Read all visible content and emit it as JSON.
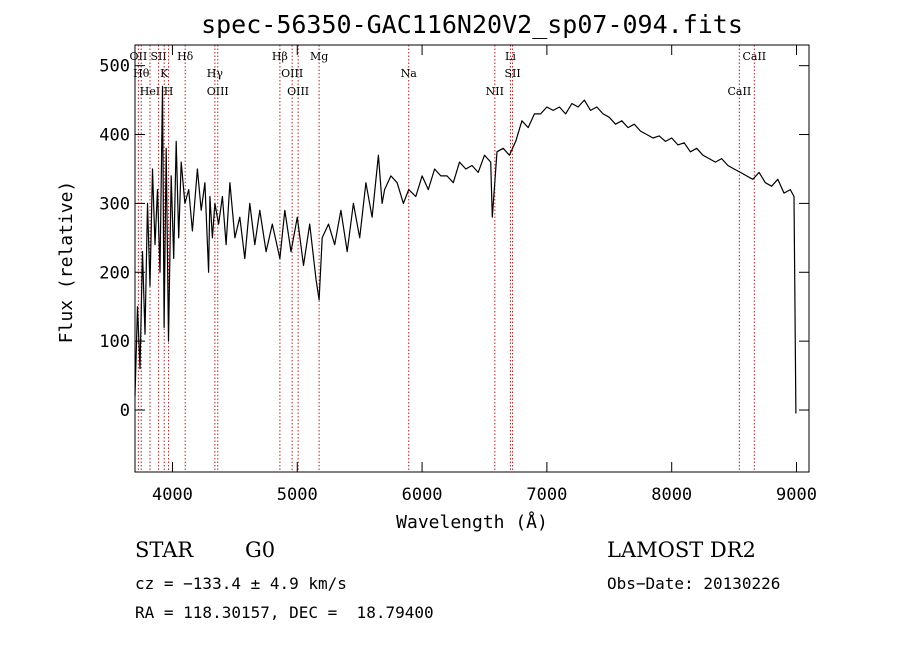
{
  "chart_data": {
    "type": "line",
    "title": "spec-56350-GAC116N20V2_sp07-094.fits",
    "xlabel": "Wavelength (Å)",
    "ylabel": "Flux (relative)",
    "xlim": [
      3700,
      9100
    ],
    "ylim": [
      -90,
      530
    ],
    "xticks": [
      4000,
      5000,
      6000,
      7000,
      8000,
      9000
    ],
    "yticks": [
      0,
      100,
      200,
      300,
      400,
      500
    ],
    "grid": false,
    "line_color": "#000000",
    "marker_color": "#b22222",
    "series": [
      {
        "x": [
          3700,
          3720,
          3740,
          3760,
          3780,
          3800,
          3820,
          3840,
          3860,
          3880,
          3900,
          3920,
          3933,
          3950,
          3968,
          3990,
          4010,
          4030,
          4050,
          4070,
          4100,
          4130,
          4160,
          4200,
          4230,
          4260,
          4290,
          4300,
          4320,
          4340,
          4370,
          4400,
          4430,
          4460,
          4500,
          4540,
          4580,
          4620,
          4660,
          4700,
          4750,
          4800,
          4861,
          4900,
          4950,
          5000,
          5050,
          5100,
          5150,
          5175,
          5200,
          5250,
          5300,
          5350,
          5400,
          5450,
          5500,
          5550,
          5600,
          5650,
          5680,
          5700,
          5750,
          5800,
          5850,
          5893,
          5950,
          6000,
          6050,
          6100,
          6150,
          6200,
          6250,
          6300,
          6350,
          6400,
          6450,
          6500,
          6550,
          6563,
          6600,
          6650,
          6700,
          6750,
          6800,
          6850,
          6900,
          6950,
          7000,
          7050,
          7100,
          7150,
          7200,
          7250,
          7300,
          7350,
          7400,
          7450,
          7500,
          7550,
          7600,
          7650,
          7700,
          7750,
          7800,
          7850,
          7900,
          7950,
          8000,
          8050,
          8100,
          8150,
          8200,
          8250,
          8300,
          8350,
          8400,
          8450,
          8500,
          8550,
          8600,
          8650,
          8700,
          8750,
          8800,
          8850,
          8900,
          8950,
          8980,
          8995
        ],
        "y": [
          20,
          150,
          60,
          230,
          110,
          300,
          180,
          350,
          240,
          320,
          200,
          470,
          120,
          380,
          100,
          340,
          220,
          390,
          250,
          360,
          300,
          320,
          260,
          350,
          290,
          330,
          200,
          310,
          250,
          300,
          270,
          310,
          240,
          330,
          250,
          280,
          220,
          300,
          240,
          290,
          230,
          270,
          220,
          290,
          230,
          280,
          210,
          270,
          190,
          160,
          250,
          270,
          240,
          290,
          230,
          300,
          250,
          330,
          280,
          370,
          300,
          320,
          340,
          330,
          300,
          320,
          310,
          340,
          320,
          350,
          340,
          340,
          330,
          360,
          350,
          355,
          345,
          370,
          360,
          280,
          375,
          380,
          370,
          390,
          420,
          410,
          430,
          430,
          440,
          435,
          440,
          430,
          445,
          440,
          450,
          435,
          440,
          430,
          425,
          415,
          420,
          410,
          415,
          405,
          400,
          395,
          398,
          390,
          395,
          385,
          388,
          375,
          380,
          370,
          365,
          360,
          365,
          355,
          350,
          345,
          340,
          335,
          345,
          330,
          325,
          335,
          315,
          320,
          310,
          -5
        ]
      }
    ],
    "line_markers": [
      {
        "x": 3727,
        "top": "OII"
      },
      {
        "x": 3750,
        "top": "Hθ"
      },
      {
        "x": 3820,
        "top": "HeI"
      },
      {
        "x": 3889,
        "top": "SII"
      },
      {
        "x": 3934,
        "top": "K"
      },
      {
        "x": 3969,
        "top": "H"
      },
      {
        "x": 4102,
        "top": "Hδ"
      },
      {
        "x": 4340,
        "top": "Hγ"
      },
      {
        "x": 4363,
        "top": "OIII"
      },
      {
        "x": 4861,
        "top": "Hβ"
      },
      {
        "x": 4959,
        "top": "OIII"
      },
      {
        "x": 5007,
        "top": "OIII"
      },
      {
        "x": 5175,
        "top": "Mg"
      },
      {
        "x": 5893,
        "top": "Na"
      },
      {
        "x": 6583,
        "top": "NII"
      },
      {
        "x": 6708,
        "top": "Li"
      },
      {
        "x": 6725,
        "top": "SII"
      },
      {
        "x": 8542,
        "top": "CaII"
      },
      {
        "x": 8662,
        "top": "CaII"
      }
    ]
  },
  "info": {
    "class": "STAR",
    "subclass": "G0",
    "survey": "LAMOST DR2",
    "cz": "cz = −133.4 ± 4.9 km/s",
    "obs_date": "Obs−Date: 20130226",
    "coords": "RA = 118.30157, DEC =  18.79400"
  }
}
